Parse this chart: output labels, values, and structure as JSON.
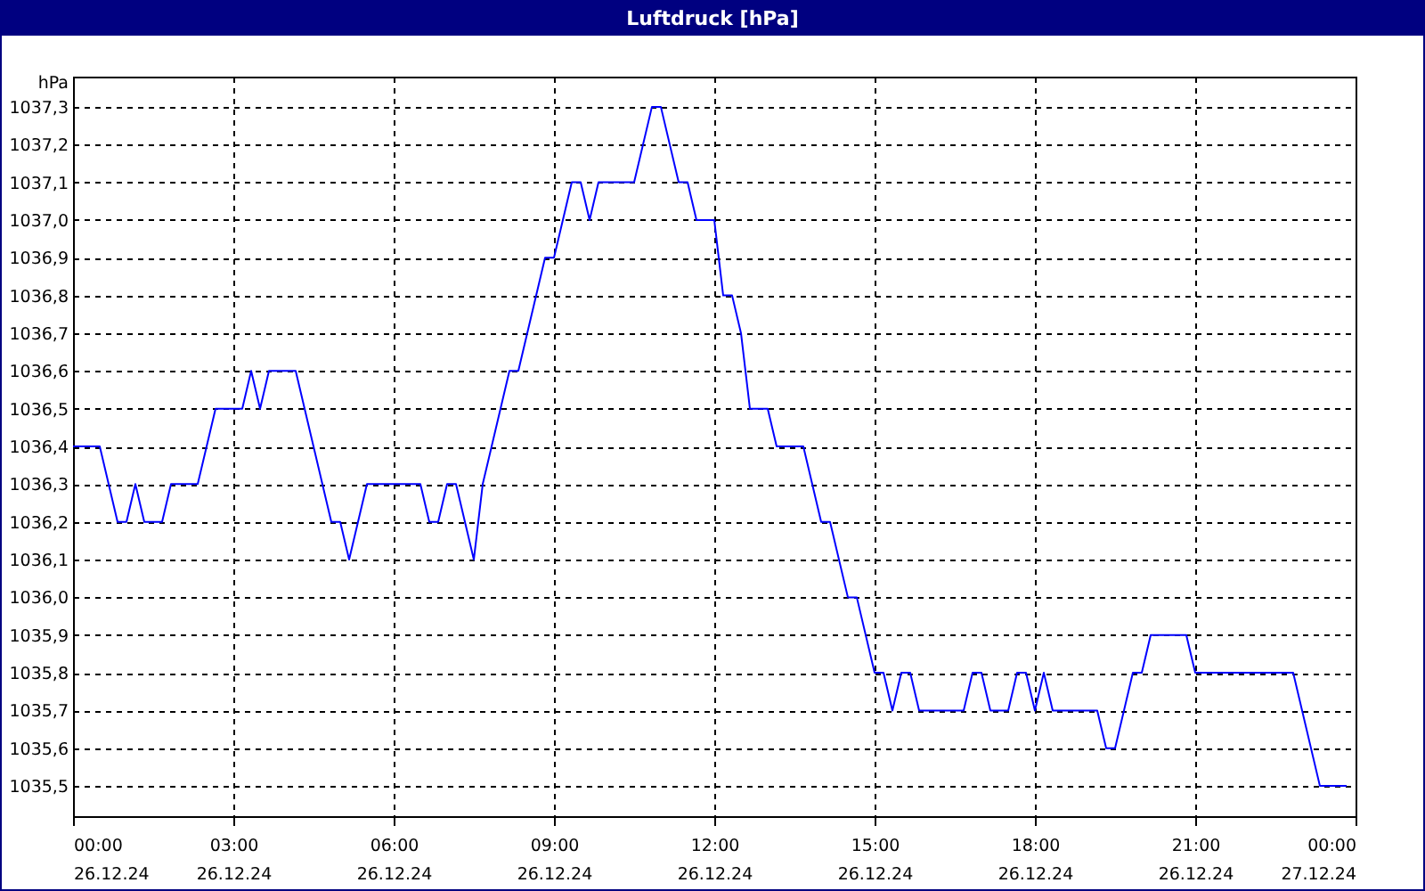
{
  "chart_data": {
    "type": "line",
    "title": "Luftdruck [hPa]",
    "ylabel": "hPa",
    "x": [
      "--12-26T00:00",
      "--12-26T00:30",
      "--12-26T00:50",
      "--12-26T01:00",
      "--12-26T01:10",
      "--12-26T01:20",
      "--12-26T01:40",
      "--12-26T01:50",
      "--12-26T02:20",
      "--12-26T02:40",
      "--12-26T03:10",
      "--12-26T03:20",
      "--12-26T03:30",
      "--12-26T03:40",
      "--12-26T04:10",
      "--12-26T04:50",
      "--12-26T05:00",
      "--12-26T05:10",
      "--12-26T05:30",
      "--12-26T06:30",
      "--12-26T06:40",
      "--12-26T06:50",
      "--12-26T07:00",
      "--12-26T07:10",
      "--12-26T07:30",
      "--12-26T07:40",
      "--12-26T08:10",
      "--12-26T08:20",
      "--12-26T08:50",
      "--12-26T09:00",
      "--12-26T09:20",
      "--12-26T09:30",
      "--12-26T09:40",
      "--12-26T09:50",
      "--12-26T10:30",
      "--12-26T10:50",
      "--12-26T11:00",
      "--12-26T11:20",
      "--12-26T11:30",
      "--12-26T11:40",
      "--12-26T12:00",
      "--12-26T12:10",
      "--12-26T12:20",
      "--12-26T12:30",
      "--12-26T12:40",
      "--12-26T13:00",
      "--12-26T13:10",
      "--12-26T13:40",
      "--12-26T14:00",
      "--12-26T14:10",
      "--12-26T14:30",
      "--12-26T14:40",
      "--12-26T15:00",
      "--12-26T15:10",
      "--12-26T15:20",
      "--12-26T15:30",
      "--12-26T15:40",
      "--12-26T15:50",
      "--12-26T16:40",
      "--12-26T16:50",
      "--12-26T17:00",
      "--12-26T17:10",
      "--12-26T17:30",
      "--12-26T17:40",
      "--12-26T17:50",
      "--12-26T18:00",
      "--12-26T18:10",
      "--12-26T18:20",
      "--12-26T19:10",
      "--12-26T19:20",
      "--12-26T19:30",
      "--12-26T19:50",
      "--12-26T20:00",
      "--12-26T20:10",
      "--12-26T20:50",
      "--12-26T21:00",
      "--12-26T22:50",
      "--12-26T23:20",
      "--12-26T23:50"
    ],
    "series": [
      {
        "color": "#0000ff",
        "values": [
          1036.4,
          1036.4,
          1036.2,
          1036.2,
          1036.3,
          1036.2,
          1036.2,
          1036.3,
          1036.3,
          1036.5,
          1036.5,
          1036.6,
          1036.5,
          1036.6,
          1036.6,
          1036.2,
          1036.2,
          1036.1,
          1036.3,
          1036.3,
          1036.2,
          1036.2,
          1036.3,
          1036.3,
          1036.1,
          1036.3,
          1036.6,
          1036.6,
          1036.9,
          1036.9,
          1037.1,
          1037.1,
          1037.0,
          1037.1,
          1037.1,
          1037.3,
          1037.3,
          1037.1,
          1037.1,
          1037.0,
          1037.0,
          1036.8,
          1036.8,
          1036.7,
          1036.5,
          1036.5,
          1036.4,
          1036.4,
          1036.2,
          1036.2,
          1036.0,
          1036.0,
          1035.8,
          1035.8,
          1035.7,
          1035.8,
          1035.8,
          1035.7,
          1035.7,
          1035.8,
          1035.8,
          1035.7,
          1035.7,
          1035.8,
          1035.8,
          1035.7,
          1035.8,
          1035.7,
          1035.7,
          1035.6,
          1035.6,
          1035.8,
          1035.8,
          1035.9,
          1035.9,
          1035.8,
          1035.8,
          1035.5,
          1035.5
        ]
      }
    ],
    "xlim": [
      "--12-26T00:00",
      "--12-27T00:00"
    ],
    "xticks": [
      {
        "value": "--12-26T00:00",
        "label": "00:00\n26.12.24"
      },
      {
        "value": "--12-26T03:00",
        "label": "03:00\n26.12.24"
      },
      {
        "value": "--12-26T06:00",
        "label": "06:00\n26.12.24"
      },
      {
        "value": "--12-26T09:00",
        "label": "09:00\n26.12.24"
      },
      {
        "value": "--12-26T12:00",
        "label": "12:00\n26.12.24"
      },
      {
        "value": "--12-26T15:00",
        "label": "15:00\n26.12.24"
      },
      {
        "value": "--12-26T18:00",
        "label": "18:00\n26.12.24"
      },
      {
        "value": "--12-26T21:00",
        "label": "21:00\n26.12.24"
      },
      {
        "value": "--12-27T00:00",
        "label": "00:00\n27.12.24"
      }
    ],
    "ylim": [
      1035.42,
      1037.38
    ],
    "yticks": [
      {
        "value": 1035.5,
        "label": "1035,5"
      },
      {
        "value": 1035.6,
        "label": "1035,6"
      },
      {
        "value": 1035.7,
        "label": "1035,7"
      },
      {
        "value": 1035.8,
        "label": "1035,8"
      },
      {
        "value": 1035.9,
        "label": "1035,9"
      },
      {
        "value": 1036.0,
        "label": "1036,0"
      },
      {
        "value": 1036.1,
        "label": "1036,1"
      },
      {
        "value": 1036.2,
        "label": "1036,2"
      },
      {
        "value": 1036.3,
        "label": "1036,3"
      },
      {
        "value": 1036.4,
        "label": "1036,4"
      },
      {
        "value": 1036.5,
        "label": "1036,5"
      },
      {
        "value": 1036.6,
        "label": "1036,6"
      },
      {
        "value": 1036.7,
        "label": "1036,7"
      },
      {
        "value": 1036.8,
        "label": "1036,8"
      },
      {
        "value": 1036.9,
        "label": "1036,9"
      },
      {
        "value": 1037.0,
        "label": "1037,0"
      },
      {
        "value": 1037.1,
        "label": "1037,1"
      },
      {
        "value": 1037.2,
        "label": "1037,2"
      },
      {
        "value": 1037.3,
        "label": "1037,3"
      }
    ],
    "grid": true
  }
}
